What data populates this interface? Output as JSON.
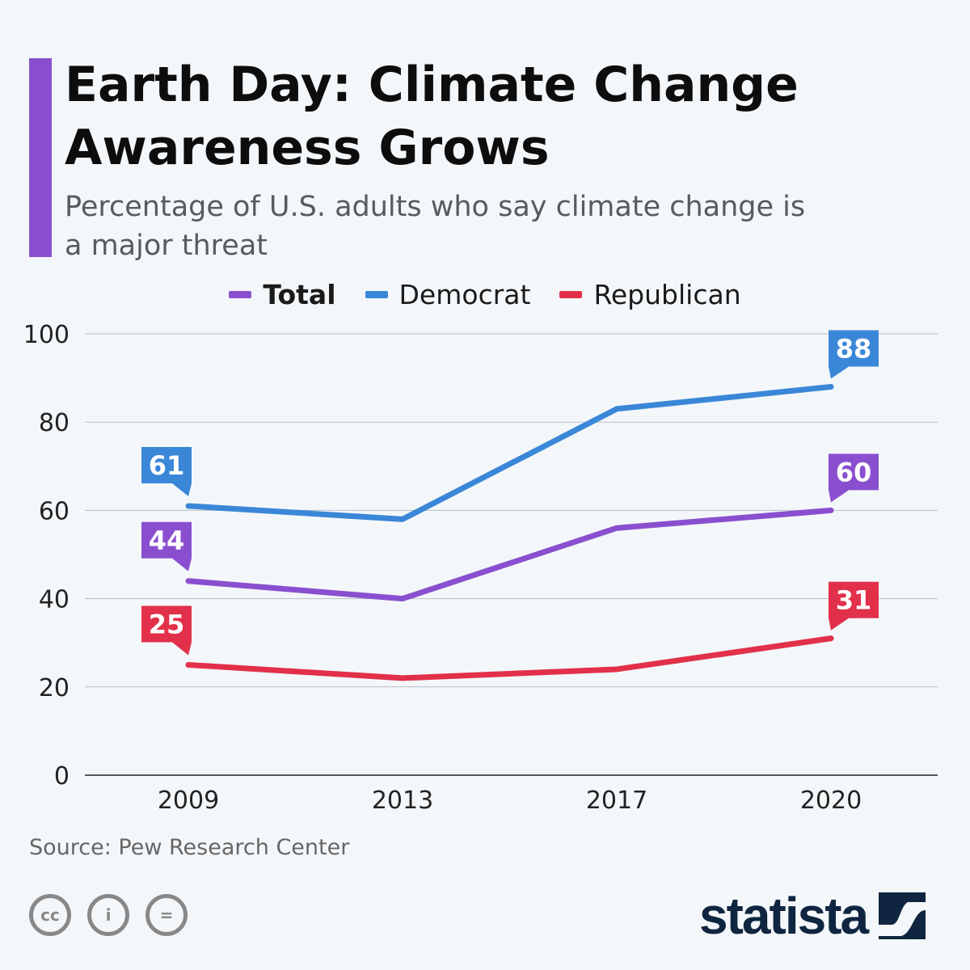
{
  "header": {
    "title": "Earth Day: Climate Change Awareness Grows",
    "subtitle": "Percentage of U.S. adults who say climate change is a major threat"
  },
  "footer": {
    "source": "Source: Pew Research Center",
    "brand": "statista",
    "license_icons": [
      "cc-icon",
      "attribution-icon",
      "no-derivatives-icon"
    ]
  },
  "colors": {
    "accent": "#8a4fcf",
    "total": "#8a4fcf",
    "democrat": "#3a87d8",
    "republican": "#e2304a"
  },
  "chart_data": {
    "type": "line",
    "title": "Earth Day: Climate Change Awareness Grows",
    "subtitle": "Percentage of U.S. adults who say climate change is a major threat",
    "categories": [
      "2009",
      "2013",
      "2017",
      "2020"
    ],
    "ylim": [
      0,
      100
    ],
    "yticks": [
      "0",
      "20",
      "40",
      "60",
      "80",
      "100"
    ],
    "grid": true,
    "legend": "top-center",
    "series": [
      {
        "name": "Total",
        "color": "#8a4fcf",
        "values": [
          44,
          40,
          56,
          60
        ],
        "labeled": [
          "44",
          null,
          null,
          "60"
        ]
      },
      {
        "name": "Democrat",
        "color": "#3a87d8",
        "values": [
          61,
          58,
          83,
          88
        ],
        "labeled": [
          "61",
          null,
          null,
          "88"
        ]
      },
      {
        "name": "Republican",
        "color": "#e2304a",
        "values": [
          25,
          22,
          24,
          31
        ],
        "labeled": [
          "25",
          null,
          null,
          "31"
        ]
      }
    ]
  }
}
